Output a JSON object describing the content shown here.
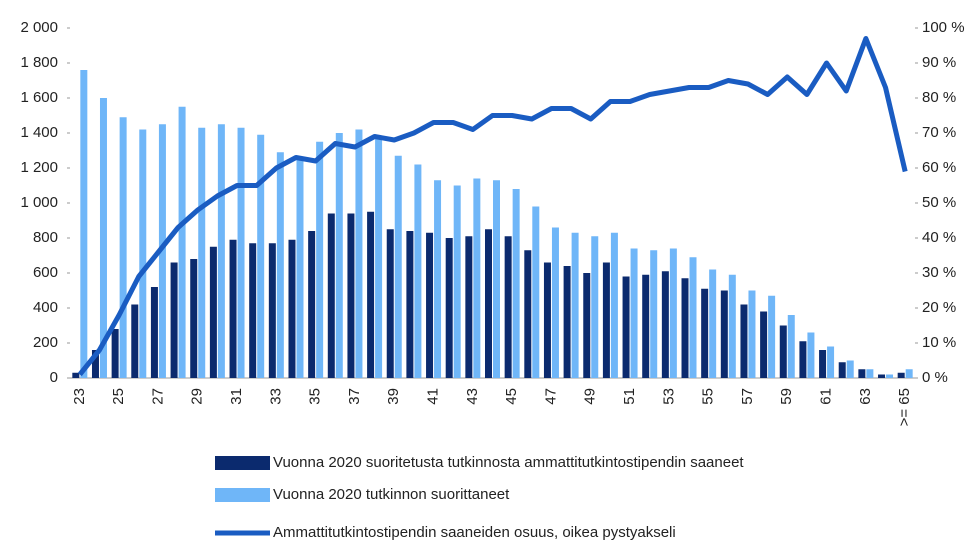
{
  "chart_data": {
    "type": "bar_line",
    "categories": [
      "23",
      null,
      "25",
      null,
      "27",
      null,
      "29",
      null,
      "31",
      null,
      "33",
      null,
      "35",
      null,
      "37",
      null,
      "39",
      null,
      "41",
      null,
      "43",
      null,
      "45",
      null,
      "47",
      null,
      "49",
      null,
      "51",
      null,
      "53",
      null,
      "55",
      null,
      "57",
      null,
      "59",
      null,
      "61",
      null,
      "63",
      null,
      ">= 65"
    ],
    "series": [
      {
        "name": "Vuonna 2020 suoritetusta tutkinnosta ammattitutkintostipendin saaneet",
        "color": "#0b2a6e",
        "type": "bar",
        "values": [
          30,
          160,
          280,
          420,
          520,
          660,
          680,
          750,
          790,
          770,
          770,
          790,
          840,
          940,
          940,
          950,
          850,
          840,
          830,
          800,
          810,
          850,
          810,
          730,
          660,
          640,
          600,
          660,
          580,
          590,
          610,
          570,
          510,
          500,
          420,
          380,
          300,
          210,
          160,
          90,
          50,
          20,
          30
        ]
      },
      {
        "name": "Vuonna 2020 tutkinnon suorittaneet",
        "color": "#6fb6f8",
        "type": "bar",
        "values": [
          1760,
          1600,
          1490,
          1420,
          1450,
          1550,
          1430,
          1450,
          1430,
          1390,
          1290,
          1260,
          1350,
          1400,
          1420,
          1370,
          1270,
          1220,
          1130,
          1100,
          1140,
          1130,
          1080,
          980,
          860,
          830,
          810,
          830,
          740,
          730,
          740,
          690,
          620,
          590,
          500,
          470,
          360,
          260,
          180,
          100,
          50,
          20,
          50
        ]
      },
      {
        "name": "Ammattitutkintostipendin saaneiden osuus, oikea pystyakseli",
        "color": "#1a5cc2",
        "type": "line",
        "axis": "y2",
        "values": [
          1,
          8,
          18,
          29,
          36,
          43,
          48,
          52,
          55,
          55,
          60,
          63,
          62,
          67,
          66,
          69,
          68,
          70,
          73,
          73,
          71,
          75,
          75,
          74,
          77,
          77,
          74,
          79,
          79,
          81,
          82,
          83,
          83,
          85,
          84,
          81,
          86,
          81,
          90,
          82,
          97,
          83,
          59
        ]
      }
    ],
    "ylim": [
      0,
      2000
    ],
    "yticks": [
      0,
      200,
      400,
      600,
      800,
      {
        "value": 1000,
        "label": "1 000"
      },
      {
        "value": 1200,
        "label": "1 200"
      },
      {
        "value": 1400,
        "label": "1 400"
      },
      {
        "value": 1600,
        "label": "1 600"
      },
      {
        "value": 1800,
        "label": "1 800"
      },
      {
        "value": 2000,
        "label": "2 000"
      }
    ],
    "y2lim": [
      0,
      100
    ],
    "y2ticks": [
      {
        "value": 0,
        "label": "0 %"
      },
      {
        "value": 10,
        "label": "10 %"
      },
      {
        "value": 20,
        "label": "20 %"
      },
      {
        "value": 30,
        "label": "30 %"
      },
      {
        "value": 40,
        "label": "40 %"
      },
      {
        "value": 50,
        "label": "50 %"
      },
      {
        "value": 60,
        "label": "60 %"
      },
      {
        "value": 70,
        "label": "70 %"
      },
      {
        "value": 80,
        "label": "80 %"
      },
      {
        "value": 90,
        "label": "90 %"
      },
      {
        "value": 100,
        "label": "100 %"
      }
    ],
    "grid": false
  }
}
